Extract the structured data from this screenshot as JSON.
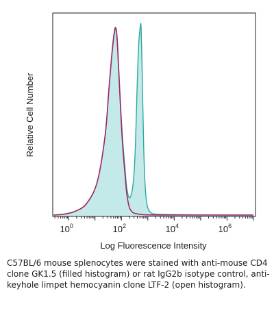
{
  "chart_data": {
    "type": "area",
    "xlabel": "Log Fluorescence Intensity",
    "ylabel": "Relative Cell Number",
    "x_scale": "log",
    "xlim": [
      0.25,
      12000000
    ],
    "ylim": [
      0,
      100
    ],
    "x_ticks": [
      {
        "base": "10",
        "exp": "0",
        "value": 1
      },
      {
        "base": "10",
        "exp": "2",
        "value": 100
      },
      {
        "base": "10",
        "exp": "4",
        "value": 10000
      },
      {
        "base": "10",
        "exp": "6",
        "value": 1000000
      }
    ],
    "grid": false,
    "legend": "none",
    "series": [
      {
        "style": "filled",
        "fill_color": "#c4e9e9",
        "line_color": "#2aa8a4",
        "x": [
          0.27,
          0.7,
          1.8,
          4.8,
          12,
          24,
          34,
          46,
          58,
          68,
          78,
          92,
          110,
          135,
          160,
          195,
          240,
          290,
          340,
          400,
          450,
          520,
          560,
          620,
          700,
          800,
          950,
          1250,
          2000,
          10000,
          1000000,
          10000000
        ],
        "values": [
          0,
          0.5,
          2,
          6,
          17,
          41,
          66,
          86,
          96,
          93,
          78,
          58,
          40,
          25,
          14,
          9,
          11,
          19,
          37,
          70,
          88,
          98,
          96,
          70,
          35,
          14,
          5,
          1.5,
          0.5,
          0.3,
          0,
          0
        ]
      },
      {
        "style": "open",
        "line_color": "#a42664",
        "x": [
          0.27,
          0.7,
          1.8,
          4.8,
          12,
          24,
          34,
          46,
          58,
          68,
          78,
          92,
          110,
          135,
          160,
          195,
          240,
          300,
          400,
          600,
          1000,
          10000,
          10000000
        ],
        "values": [
          0,
          0.5,
          2,
          6,
          17,
          41,
          66,
          87,
          97,
          92,
          76,
          56,
          37,
          22,
          11,
          4.5,
          2,
          1,
          0.6,
          0.3,
          0.1,
          0,
          0
        ]
      }
    ]
  },
  "caption": "C57BL/6 mouse splenocytes were stained with anti-mouse CD4 clone GK1.5 (filled histogram) or rat IgG2b isotype control, anti-keyhole limpet hemocyanin clone LTF-2 (open histogram)."
}
